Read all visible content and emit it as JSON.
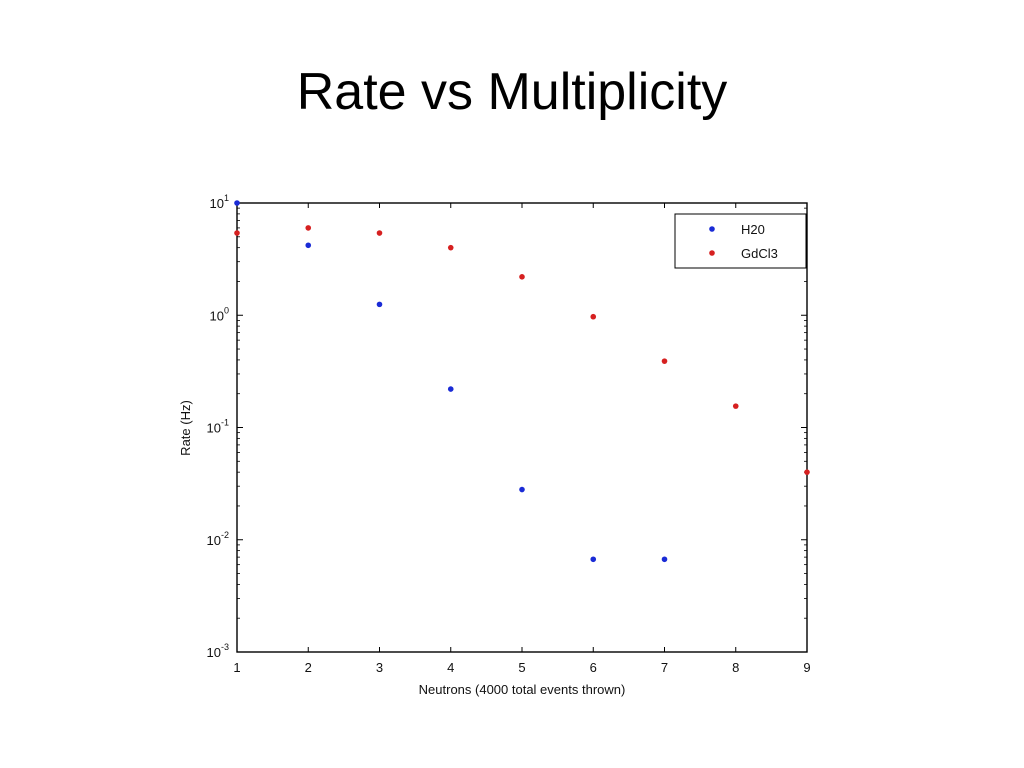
{
  "slide": {
    "title": "Rate vs Multiplicity"
  },
  "chart_data": {
    "type": "scatter",
    "title": "",
    "xlabel": "Neutrons (4000 total events thrown)",
    "ylabel": "Rate (Hz)",
    "xlim": [
      1,
      9
    ],
    "ylim": [
      0.001,
      10
    ],
    "yscale": "log",
    "xticks": [
      "1",
      "2",
      "3",
      "4",
      "5",
      "6",
      "7",
      "8",
      "9"
    ],
    "yticks": [
      {
        "base": "10",
        "exp": "-3",
        "value": 0.001
      },
      {
        "base": "10",
        "exp": "-2",
        "value": 0.01
      },
      {
        "base": "10",
        "exp": "-1",
        "value": 0.1
      },
      {
        "base": "10",
        "exp": "0",
        "value": 1
      },
      {
        "base": "10",
        "exp": "1",
        "value": 10
      }
    ],
    "grid": false,
    "legend": "top-right",
    "series": [
      {
        "name": "H20",
        "color": "#1a2bd6",
        "x": [
          1,
          2,
          3,
          4,
          5,
          6,
          7
        ],
        "y": [
          10,
          4.2,
          1.25,
          0.22,
          0.028,
          0.0067,
          0.0067
        ]
      },
      {
        "name": "GdCl3",
        "color": "#d62020",
        "x": [
          1,
          2,
          3,
          4,
          5,
          6,
          7,
          8,
          9
        ],
        "y": [
          5.4,
          6.0,
          5.4,
          4.0,
          2.2,
          0.97,
          0.39,
          0.155,
          0.04
        ]
      }
    ]
  }
}
